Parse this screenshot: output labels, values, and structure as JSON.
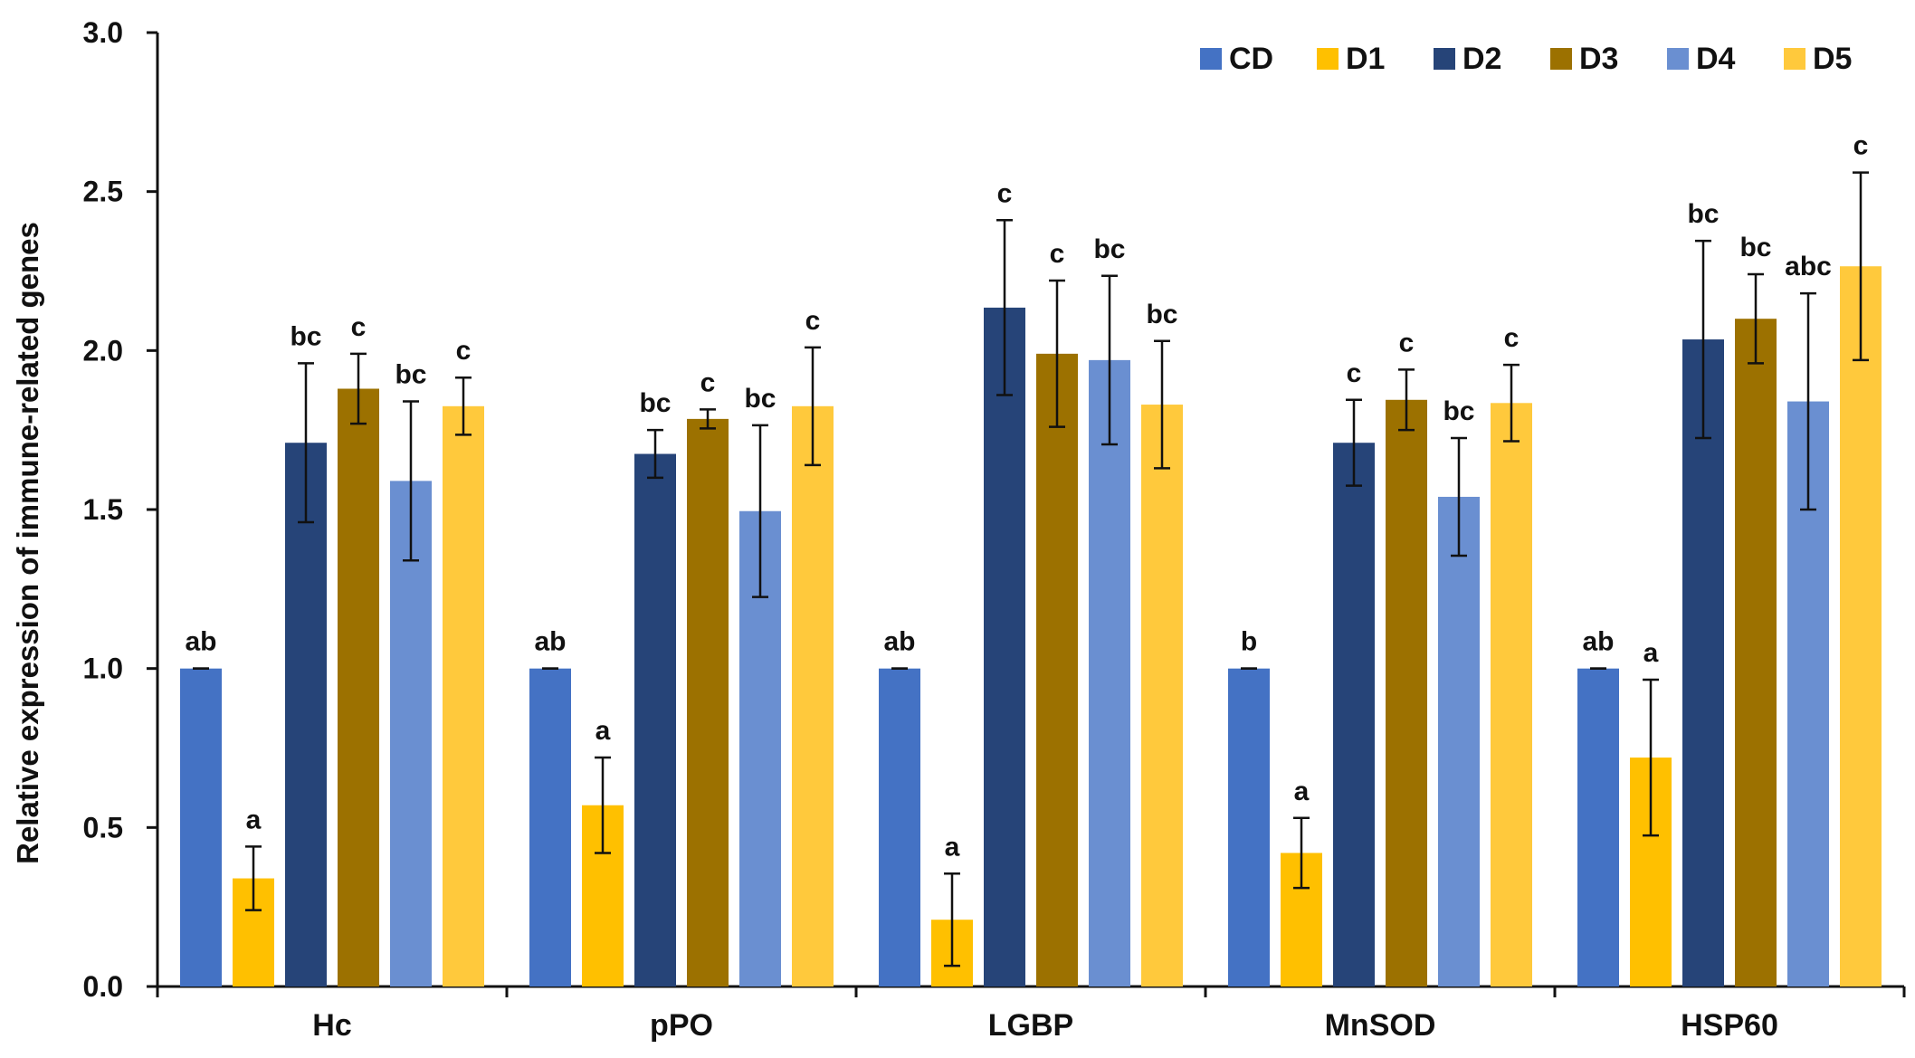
{
  "chart_data": {
    "type": "bar",
    "title": "",
    "xlabel": "",
    "ylabel": "Relative expression of immune-related genes",
    "ylim": [
      0,
      3.0
    ],
    "yticks": [
      0.0,
      0.5,
      1.0,
      1.5,
      2.0,
      2.5,
      3.0
    ],
    "ytick_labels": [
      "0.0",
      "0.5",
      "1.0",
      "1.5",
      "2.0",
      "2.5",
      "3.0"
    ],
    "grid": false,
    "legend_position": "top-right",
    "categories": [
      "Hc",
      "pPO",
      "LGBP",
      "MnSOD",
      "HSP60"
    ],
    "series": [
      {
        "name": "CD",
        "color": "#4472c4",
        "values": [
          1.0,
          1.0,
          1.0,
          1.0,
          1.0
        ],
        "errors": [
          0.0,
          0.0,
          0.0,
          0.0,
          0.0
        ],
        "labels": [
          "ab",
          "ab",
          "ab",
          "b",
          "ab"
        ]
      },
      {
        "name": "D1",
        "color": "#ffc000",
        "values": [
          0.34,
          0.57,
          0.21,
          0.42,
          0.72
        ],
        "errors": [
          0.1,
          0.15,
          0.145,
          0.11,
          0.245
        ],
        "labels": [
          "a",
          "a",
          "a",
          "a",
          "a"
        ]
      },
      {
        "name": "D2",
        "color": "#264478",
        "values": [
          1.71,
          1.675,
          2.135,
          1.71,
          2.035
        ],
        "errors": [
          0.25,
          0.075,
          0.275,
          0.135,
          0.31
        ],
        "labels": [
          "bc",
          "bc",
          "c",
          "c",
          "bc"
        ]
      },
      {
        "name": "D3",
        "color": "#9c7100",
        "values": [
          1.88,
          1.785,
          1.99,
          1.845,
          2.1
        ],
        "errors": [
          0.11,
          0.03,
          0.23,
          0.095,
          0.14
        ],
        "labels": [
          "c",
          "c",
          "c",
          "c",
          "bc"
        ]
      },
      {
        "name": "D4",
        "color": "#6a8fd1",
        "values": [
          1.59,
          1.495,
          1.97,
          1.54,
          1.84
        ],
        "errors": [
          0.25,
          0.27,
          0.265,
          0.185,
          0.34
        ],
        "labels": [
          "bc",
          "bc",
          "bc",
          "bc",
          "abc"
        ]
      },
      {
        "name": "D5",
        "color": "#ffc93c",
        "values": [
          1.825,
          1.825,
          1.83,
          1.835,
          2.265
        ],
        "errors": [
          0.09,
          0.185,
          0.2,
          0.12,
          0.295
        ],
        "labels": [
          "c",
          "c",
          "bc",
          "c",
          "c"
        ]
      }
    ]
  }
}
